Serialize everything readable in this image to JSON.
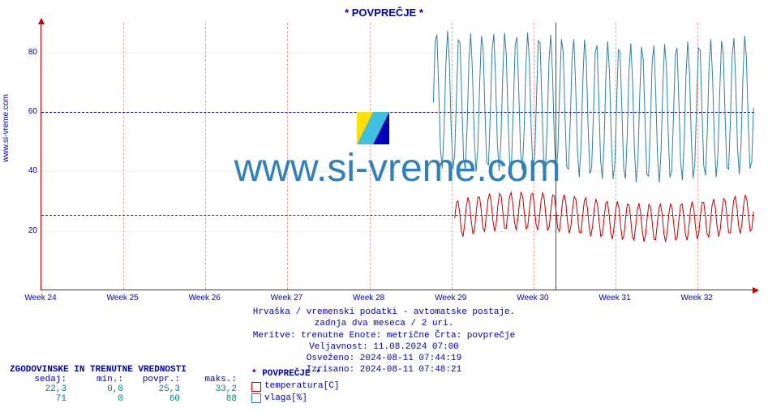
{
  "title": "* POVPREČJE *",
  "y_axis_label": "www.si-vreme.com",
  "watermark_text": "www.si-vreme.com",
  "chart": {
    "type": "line",
    "ylim": [
      0,
      90
    ],
    "yticks": [
      20,
      40,
      60,
      80
    ],
    "xticks": [
      "Week 24",
      "Week 25",
      "Week 26",
      "Week 27",
      "Week 28",
      "Week 29",
      "Week 30",
      "Week 31",
      "Week 32"
    ],
    "background_color": "#ffffff",
    "grid_color": "#f0f0f0",
    "axis_color": "#c00000",
    "vgrid_color": "#f0a0a0",
    "ref_lines": [
      {
        "y": 25.3,
        "color": "#c00000"
      },
      {
        "y": 60,
        "color": "#000080"
      }
    ],
    "vline_x": 0.72,
    "series": [
      {
        "name": "temperatura[C]",
        "color": "#c00000",
        "fill": "#ffffff",
        "start": 0.58,
        "base": 25,
        "amp_lo": 7,
        "amp_hi": 6,
        "trend": 0.02
      },
      {
        "name": "vlaga[%]",
        "color": "#3080a0",
        "fill": "#ffffff",
        "start": 0.55,
        "base": 60,
        "amp_lo": 22,
        "amp_hi": 25,
        "trend": -0.05
      }
    ]
  },
  "meta": {
    "line1": "Hrvaška / vremenski podatki - avtomatske postaje.",
    "line2": "zadnja dva meseca / 2 uri.",
    "line3": "Meritve: trenutne  Enote: metrične  Črta: povprečje",
    "line4": "Veljavnost: 11.08.2024 07:00",
    "line5": "Osveženo: 2024-08-11 07:44:19",
    "line6": "Izrisano: 2024-08-11 07:48:21"
  },
  "stats": {
    "title": "ZGODOVINSKE IN TRENUTNE VREDNOSTI",
    "headers": [
      "sedaj:",
      "min.:",
      "povpr.:",
      "maks.:"
    ],
    "rows": [
      [
        "22,3",
        "0,0",
        "25,3",
        "33,2"
      ],
      [
        "71",
        "0",
        "60",
        "88"
      ]
    ]
  },
  "legend": {
    "title": "* POVPREČJE *",
    "items": [
      {
        "label": "temperatura[C]",
        "border": "#c00000",
        "fill": "#ffffff"
      },
      {
        "label": "vlaga[%]",
        "border": "#3080a0",
        "fill": "#ffffff"
      }
    ]
  }
}
